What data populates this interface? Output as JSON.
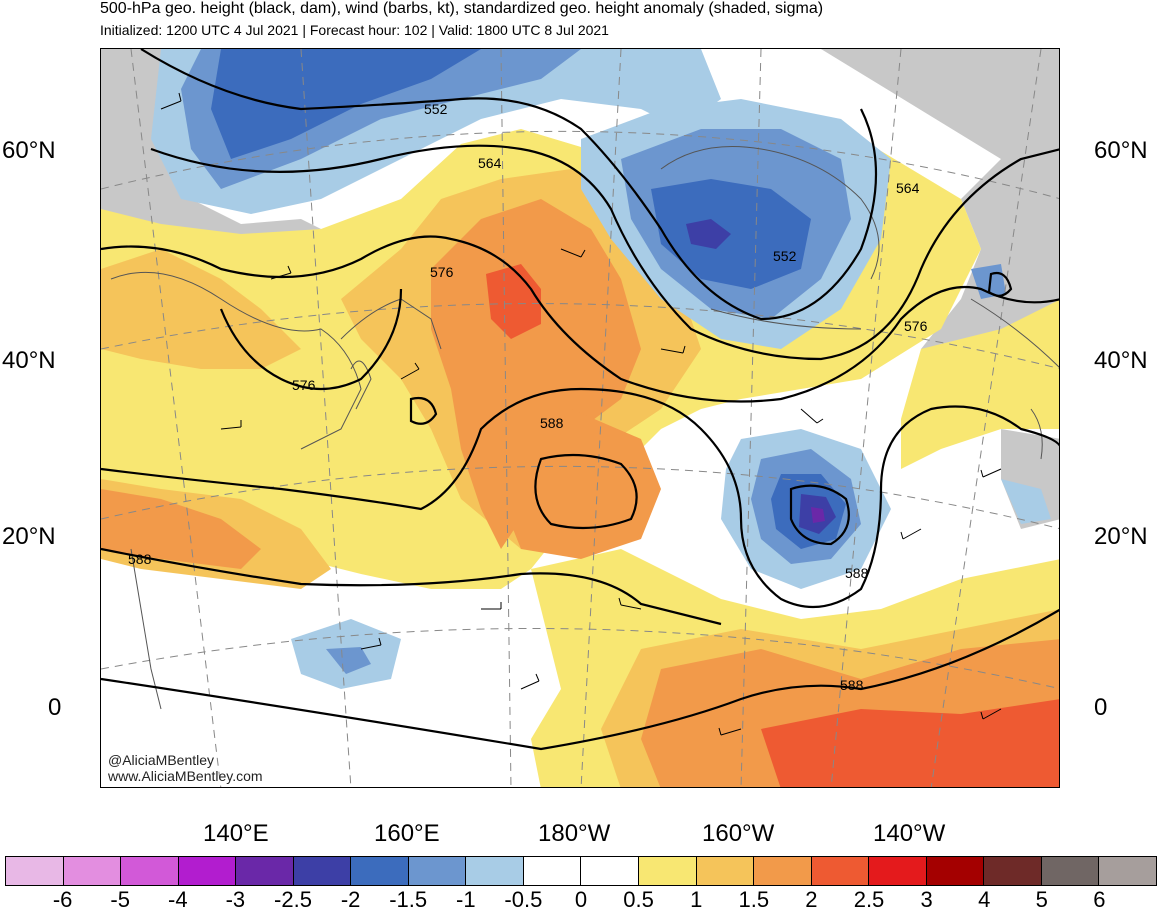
{
  "header": {
    "title": "500-hPa geo. height (black, dam), wind (barbs, kt), standardized geo. height anomaly (shaded, sigma)",
    "subtitle": "Initialized: 1200 UTC 4 Jul 2021 | Forecast hour: 102 | Valid: 1800 UTC 8 Jul 2021"
  },
  "map": {
    "lat_labels": [
      "60°N",
      "40°N",
      "20°N",
      "0"
    ],
    "lon_labels": [
      "140°E",
      "160°E",
      "180°W",
      "160°W",
      "140°W"
    ],
    "contour_labels": [
      "552",
      "564",
      "564",
      "552",
      "576",
      "576",
      "576",
      "588",
      "588",
      "588",
      "588"
    ],
    "watermark": [
      "@AliciaMBentley",
      "www.AliciaMBentley.com"
    ]
  },
  "colorbar": {
    "tick_labels": [
      "-6",
      "-5",
      "-4",
      "-3",
      "-2.5",
      "-2",
      "-1.5",
      "-1",
      "-0.5",
      "0",
      "0.5",
      "1",
      "1.5",
      "2",
      "2.5",
      "3",
      "4",
      "5",
      "6"
    ],
    "colors": [
      "#e8b8e6",
      "#e38ee0",
      "#d259d8",
      "#b21dcf",
      "#6a28a8",
      "#3d3fa6",
      "#3c6cbd",
      "#6c96cf",
      "#a8cce6",
      "#ffffff",
      "#ffffff",
      "#f8e772",
      "#f5c45a",
      "#f29a4a",
      "#ee5a32",
      "#e41a1c",
      "#a40000",
      "#6e2a28",
      "#706664",
      "#a69e9c"
    ]
  },
  "colors": {
    "neg_light": "#a8cce6",
    "neg_med": "#6c96cf",
    "neg_strong": "#3c6cbd",
    "neg_dark": "#3d3fa6",
    "neg_purple": "#6a28a8",
    "pos_yellow": "#f8e772",
    "pos_gold": "#f5c45a",
    "pos_orange": "#f29a4a",
    "pos_red": "#ee5a32",
    "gray": "#c8c8c8"
  }
}
